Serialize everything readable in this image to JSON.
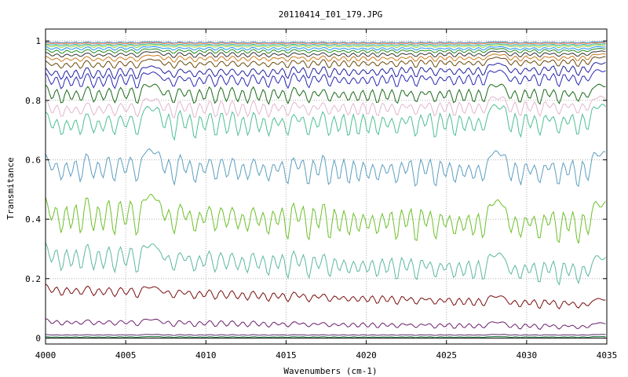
{
  "chart_data": {
    "type": "line",
    "title": "20110414_I01_179.JPG",
    "xlabel": "Wavenumbers (cm-1)",
    "ylabel": "Transmitance",
    "xlim": [
      4000,
      4035
    ],
    "ylim": [
      -0.02,
      1.04
    ],
    "xticks": [
      4000,
      4005,
      4010,
      4015,
      4020,
      4025,
      4030,
      4035
    ],
    "yticks": [
      0,
      0.2,
      0.4,
      0.6,
      0.8,
      1
    ],
    "ytick_labels": [
      "0",
      "0.2",
      "0.4",
      "0.6",
      "0.8",
      "1"
    ],
    "grid": true,
    "absorption_lines": [
      4000.4,
      4001.0,
      4001.6,
      4002.2,
      4003.0,
      4003.6,
      4004.3,
      4005.0,
      4005.7,
      4007.4,
      4008.0,
      4008.7,
      4009.3,
      4009.9,
      4010.6,
      4011.3,
      4012.0,
      4012.6,
      4013.3,
      4013.9,
      4014.5,
      4015.1,
      4015.8,
      4016.4,
      4017.0,
      4017.7,
      4018.3,
      4018.9,
      4019.5,
      4020.1,
      4020.7,
      4021.3,
      4021.9,
      4022.5,
      4023.1,
      4023.7,
      4024.3,
      4024.9,
      4025.5,
      4026.1,
      4026.7,
      4027.3,
      4029.0,
      4029.6,
      4030.2,
      4030.8,
      4031.4,
      4032.0,
      4032.6,
      4033.2,
      4033.8
    ],
    "series": [
      {
        "baseline_start": 0.0,
        "baseline_end": 0.0,
        "depth": 0.0,
        "color": "#000000"
      },
      {
        "baseline_start": 0.005,
        "baseline_end": 0.005,
        "depth": 0.003,
        "color": "#1b7a3a"
      },
      {
        "baseline_start": 0.012,
        "baseline_end": 0.012,
        "depth": 0.003,
        "color": "#5a2a6a"
      },
      {
        "baseline_start": 0.065,
        "baseline_end": 0.05,
        "depth": 0.022,
        "color": "#6b1f6b"
      },
      {
        "baseline_start": 0.18,
        "baseline_end": 0.13,
        "depth": 0.035,
        "color": "#7a0e0e"
      },
      {
        "baseline_start": 0.32,
        "baseline_end": 0.27,
        "depth": 0.09,
        "color": "#5cb8a0"
      },
      {
        "baseline_start": 0.48,
        "baseline_end": 0.45,
        "depth": 0.13,
        "color": "#6cc02a"
      },
      {
        "baseline_start": 0.63,
        "baseline_end": 0.62,
        "depth": 0.11,
        "color": "#5d9ec0"
      },
      {
        "baseline_start": 0.77,
        "baseline_end": 0.78,
        "depth": 0.1,
        "color": "#4fbf94"
      },
      {
        "baseline_start": 0.8,
        "baseline_end": 0.81,
        "depth": 0.06,
        "color": "#e3b7cf"
      },
      {
        "baseline_start": 0.85,
        "baseline_end": 0.85,
        "depth": 0.06,
        "color": "#1a6a1a"
      },
      {
        "baseline_start": 0.89,
        "baseline_end": 0.9,
        "depth": 0.05,
        "color": "#2a2ab4"
      },
      {
        "baseline_start": 0.91,
        "baseline_end": 0.925,
        "depth": 0.04,
        "color": "#2020a0"
      },
      {
        "baseline_start": 0.935,
        "baseline_end": 0.945,
        "depth": 0.03,
        "color": "#6a4a10"
      },
      {
        "baseline_start": 0.95,
        "baseline_end": 0.955,
        "depth": 0.022,
        "color": "#c87a20"
      },
      {
        "baseline_start": 0.962,
        "baseline_end": 0.965,
        "depth": 0.018,
        "color": "#333333"
      },
      {
        "baseline_start": 0.972,
        "baseline_end": 0.974,
        "depth": 0.014,
        "color": "#228b22"
      },
      {
        "baseline_start": 0.98,
        "baseline_end": 0.98,
        "depth": 0.011,
        "color": "#1e90ff"
      },
      {
        "baseline_start": 0.986,
        "baseline_end": 0.986,
        "depth": 0.008,
        "color": "#9acd32"
      },
      {
        "baseline_start": 0.99,
        "baseline_end": 0.99,
        "depth": 0.006,
        "color": "#20b2aa"
      },
      {
        "baseline_start": 0.994,
        "baseline_end": 0.994,
        "depth": 0.005,
        "color": "#ff7f50"
      },
      {
        "baseline_start": 0.997,
        "baseline_end": 0.997,
        "depth": 0.004,
        "color": "#4682b4"
      }
    ]
  }
}
